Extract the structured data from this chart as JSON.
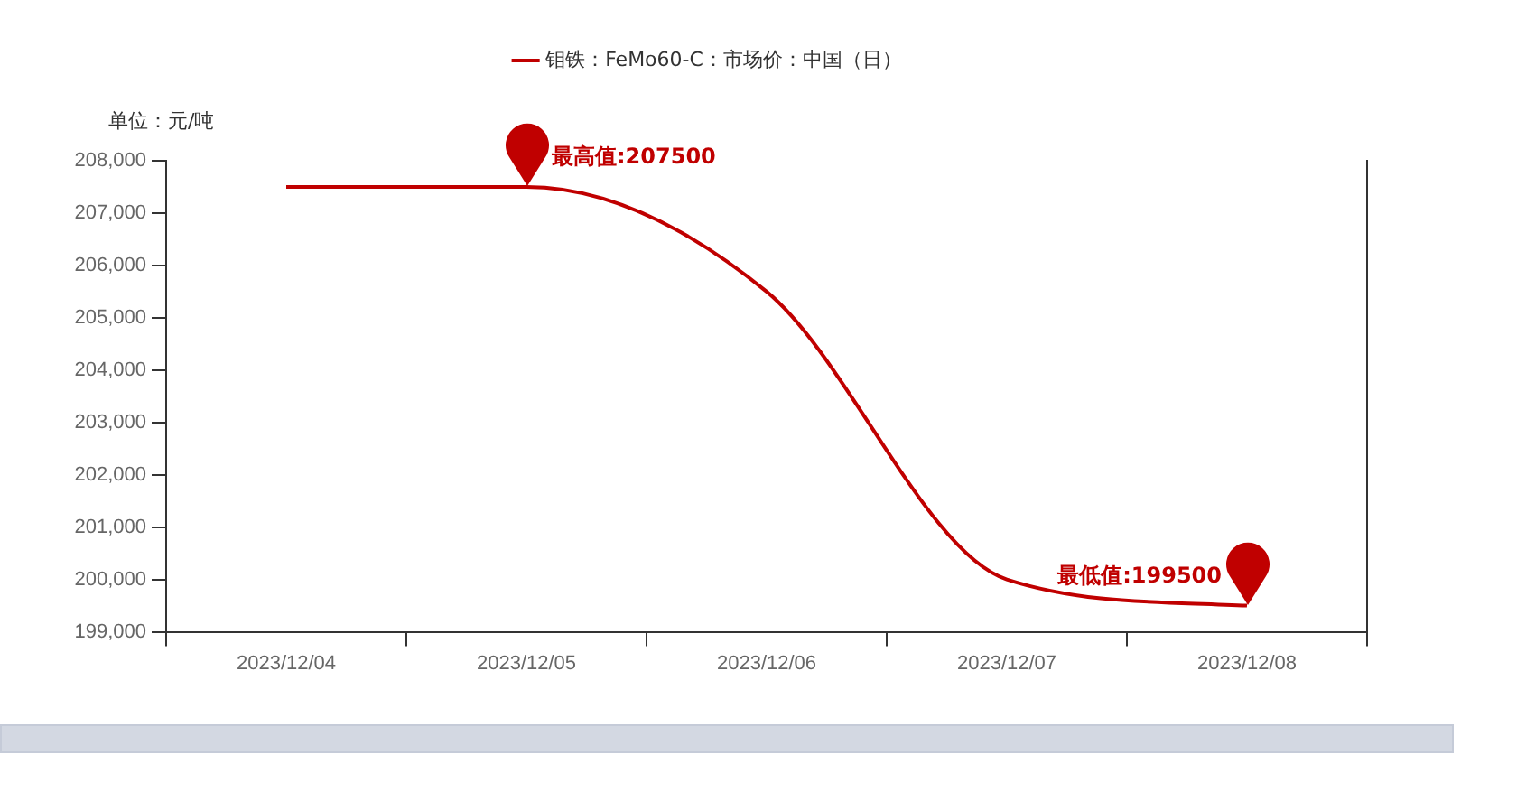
{
  "chart_data": {
    "type": "line",
    "ylabel": "单位：元/吨",
    "categories": [
      "2023/12/04",
      "2023/12/05",
      "2023/12/06",
      "2023/12/07",
      "2023/12/08"
    ],
    "series": [
      {
        "name": "钼铁：FeMo60-C：市场价：中国（日）",
        "color": "#c00000",
        "values": [
          207500,
          207500,
          205500,
          200000,
          199500
        ]
      }
    ],
    "ylim": [
      199000,
      208000
    ],
    "yticks": [
      {
        "value": 199000,
        "label": "199,000"
      },
      {
        "value": 200000,
        "label": "200,000"
      },
      {
        "value": 201000,
        "label": "201,000"
      },
      {
        "value": 202000,
        "label": "202,000"
      },
      {
        "value": 203000,
        "label": "203,000"
      },
      {
        "value": 204000,
        "label": "204,000"
      },
      {
        "value": 205000,
        "label": "205,000"
      },
      {
        "value": 206000,
        "label": "206,000"
      },
      {
        "value": 207000,
        "label": "207,000"
      },
      {
        "value": 208000,
        "label": "208,000"
      }
    ],
    "annotations": [
      {
        "text": "最高值:207500",
        "x": "2023/12/05",
        "y": 207500
      },
      {
        "text": "最低值:199500",
        "x": "2023/12/08",
        "y": 199500
      }
    ],
    "grid": false,
    "legend": "top",
    "marker": "none",
    "line_style": "solid"
  }
}
